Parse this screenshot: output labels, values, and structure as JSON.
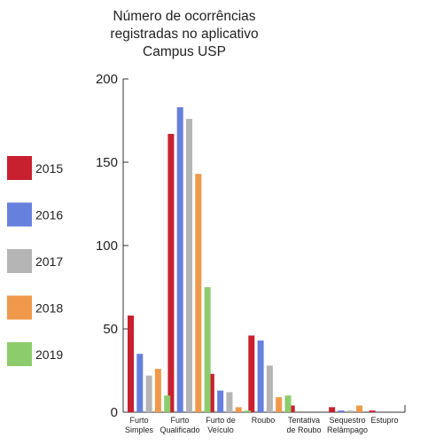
{
  "chart_data": {
    "type": "bar",
    "title": [
      "Número de ocorrências",
      "registradas no aplicativo",
      "Campus USP"
    ],
    "xlabel": "",
    "ylabel": "",
    "ylim": [
      0,
      200
    ],
    "yticks": [
      0,
      50,
      100,
      150,
      200
    ],
    "grid": false,
    "legend_position": "left",
    "categories": [
      [
        "Furto",
        "Simples"
      ],
      [
        "Furto",
        "Qualificado"
      ],
      [
        "Furto de",
        "Veículo"
      ],
      [
        "Roubo"
      ],
      [
        "Tentativa",
        "de Roubo"
      ],
      [
        "Sequestro",
        "Relâmpago"
      ],
      [
        "Estupro"
      ]
    ],
    "series": [
      {
        "name": "2015",
        "color": "#c8202f",
        "values": [
          58,
          167,
          23,
          46,
          4,
          3,
          1
        ]
      },
      {
        "name": "2016",
        "color": "#6680dd",
        "values": [
          35,
          183,
          13,
          43,
          0,
          1,
          0
        ]
      },
      {
        "name": "2017",
        "color": "#b5b5b5",
        "values": [
          22,
          176,
          12,
          28,
          0,
          1,
          0
        ]
      },
      {
        "name": "2018",
        "color": "#f0994a",
        "values": [
          26,
          143,
          3,
          9,
          0,
          4,
          0
        ]
      },
      {
        "name": "2019",
        "color": "#8ccc6c",
        "values": [
          10,
          75,
          1,
          10,
          0,
          0,
          0
        ]
      }
    ]
  }
}
